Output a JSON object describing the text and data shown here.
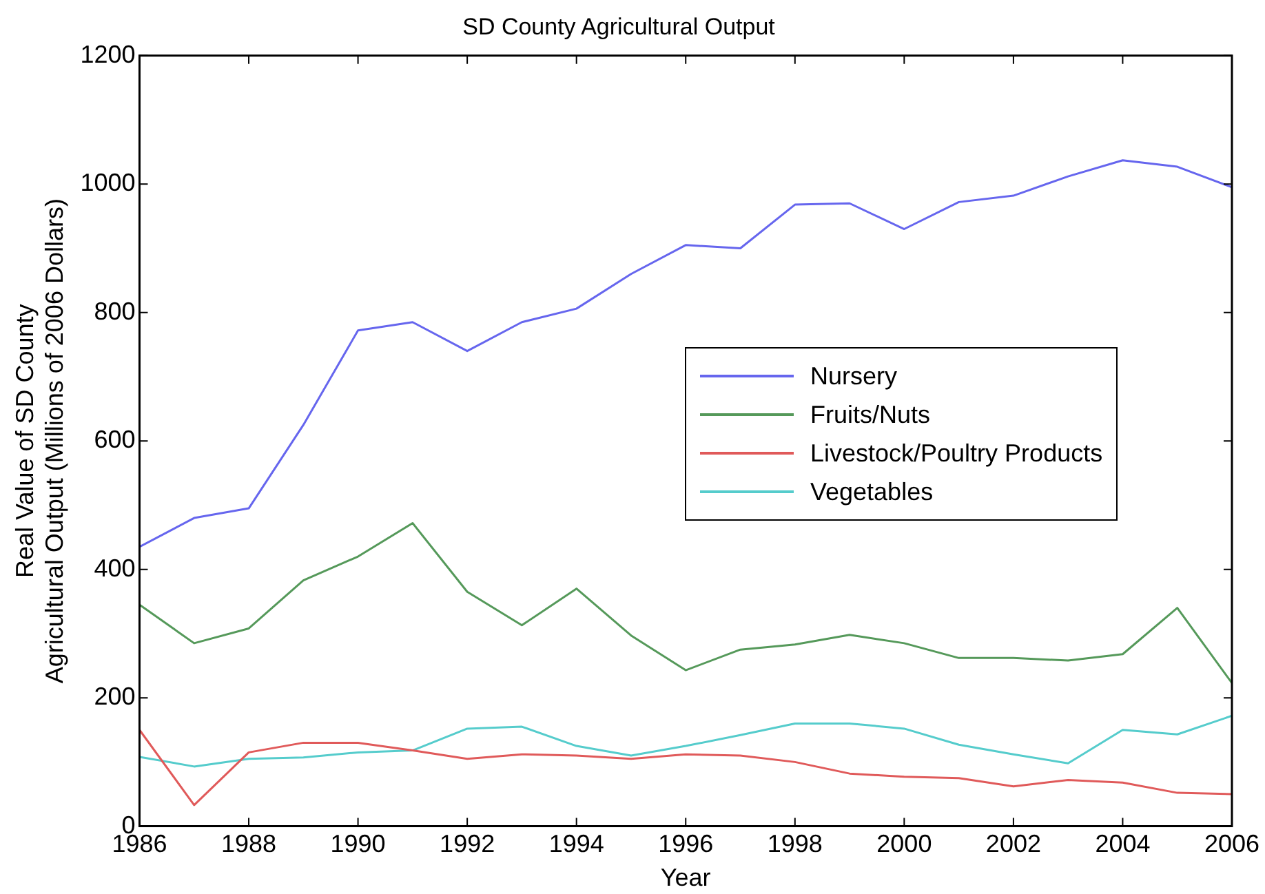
{
  "chart_data": {
    "type": "line",
    "title": "SD County Agricultural Output",
    "xlabel": "Year",
    "ylabel": "Real Value of SD County\nAgricultural Output (Millions of 2006 Dollars)",
    "x": [
      1986,
      1987,
      1988,
      1989,
      1990,
      1991,
      1992,
      1993,
      1994,
      1995,
      1996,
      1997,
      1998,
      1999,
      2000,
      2001,
      2002,
      2003,
      2004,
      2005,
      2006
    ],
    "xlim": [
      1986,
      2006
    ],
    "xticks": [
      1986,
      1988,
      1990,
      1992,
      1994,
      1996,
      1998,
      2000,
      2002,
      2004,
      2006
    ],
    "ylim": [
      0,
      1200
    ],
    "yticks": [
      0,
      200,
      400,
      600,
      800,
      1000,
      1200
    ],
    "grid": false,
    "legend": "right",
    "marker": "none",
    "line_style": "solid",
    "series": [
      {
        "name": "Nursery",
        "color": "#6666ee",
        "values": [
          435,
          480,
          495,
          625,
          772,
          785,
          740,
          785,
          806,
          860,
          905,
          900,
          968,
          970,
          930,
          972,
          982,
          1012,
          1037,
          1027,
          995
        ]
      },
      {
        "name": "Fruits/Nuts",
        "color": "#55995a",
        "values": [
          345,
          285,
          308,
          383,
          420,
          472,
          365,
          313,
          370,
          297,
          243,
          275,
          283,
          298,
          285,
          262,
          262,
          258,
          268,
          340,
          223
        ]
      },
      {
        "name": "Livestock/Poultry Products",
        "color": "#e05a5a",
        "values": [
          150,
          33,
          115,
          130,
          130,
          118,
          105,
          112,
          110,
          105,
          112,
          110,
          100,
          82,
          77,
          75,
          62,
          72,
          68,
          52,
          50
        ]
      },
      {
        "name": "Vegetables",
        "color": "#55cccc",
        "values": [
          108,
          93,
          105,
          107,
          115,
          118,
          152,
          155,
          125,
          110,
          125,
          142,
          160,
          160,
          152,
          127,
          112,
          98,
          150,
          143,
          172
        ]
      }
    ]
  }
}
